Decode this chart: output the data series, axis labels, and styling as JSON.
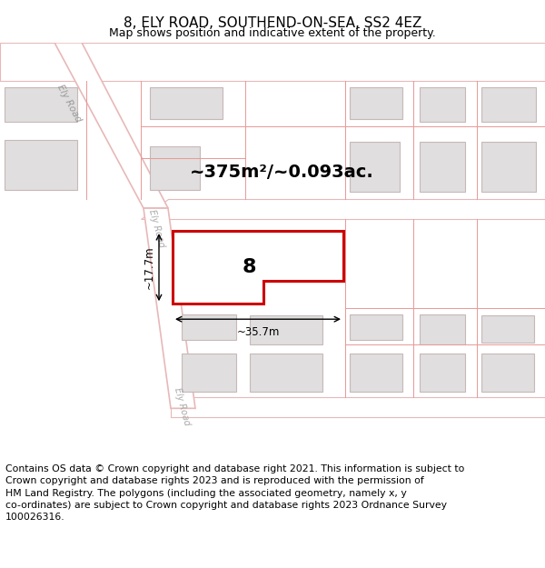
{
  "title": "8, ELY ROAD, SOUTHEND-ON-SEA, SS2 4EZ",
  "subtitle": "Map shows position and indicative extent of the property.",
  "area_text": "~375m²/~0.093ac.",
  "number_label": "8",
  "dim_width": "~35.7m",
  "dim_height": "~17.7m",
  "footer": "Contains OS data © Crown copyright and database right 2021. This information is subject to\nCrown copyright and database rights 2023 and is reproduced with the permission of\nHM Land Registry. The polygons (including the associated geometry, namely x, y\nco-ordinates) are subject to Crown copyright and database rights 2023 Ordnance Survey\n100026316.",
  "bg_color": "#f2f0f0",
  "road_color": "#ffffff",
  "road_stroke": "#e8b8b8",
  "block_fill": "#e0dede",
  "block_stroke": "#c8b8b8",
  "property_fill": "#ffffff",
  "property_stroke": "#cc0000",
  "red_line": "#e89898",
  "title_fontsize": 11,
  "subtitle_fontsize": 9,
  "area_fontsize": 14,
  "label_fontsize": 16,
  "footer_fontsize": 7.8
}
